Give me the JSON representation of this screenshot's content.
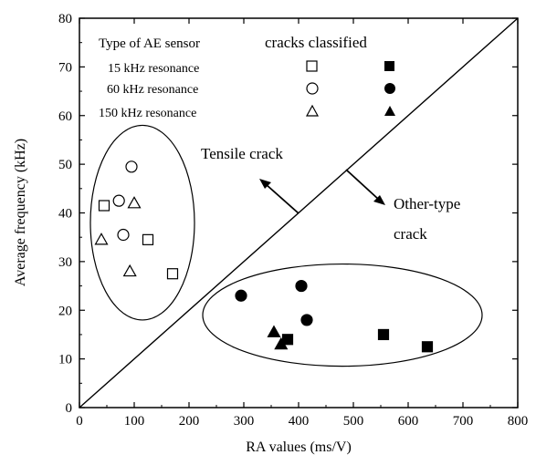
{
  "chart_data": {
    "type": "scatter",
    "xlabel": "RA values (ms/V)",
    "ylabel": "Average frequency (kHz)",
    "xlim": [
      0,
      800
    ],
    "ylim": [
      0,
      80
    ],
    "xticks": [
      0,
      100,
      200,
      300,
      400,
      500,
      600,
      700,
      800
    ],
    "yticks": [
      0,
      10,
      20,
      30,
      40,
      50,
      60,
      70,
      80
    ],
    "grid": false,
    "legend": {
      "placement": "top-left",
      "header_left": "Type of AE sensor",
      "header_right": "cracks classified",
      "rows": [
        {
          "label": "15 kHz resonance",
          "marker": "square"
        },
        {
          "label": "60 kHz resonance",
          "marker": "circle"
        },
        {
          "label": "150 kHz resonance",
          "marker": "triangle"
        }
      ]
    },
    "series": [
      {
        "marker": "square",
        "filled": false,
        "points": [
          [
            45,
            41.5
          ],
          [
            125,
            34.5
          ],
          [
            170,
            27.5
          ]
        ]
      },
      {
        "marker": "circle",
        "filled": false,
        "points": [
          [
            95,
            49.5
          ],
          [
            72,
            42.5
          ],
          [
            80,
            35.5
          ]
        ]
      },
      {
        "marker": "triangle",
        "filled": false,
        "points": [
          [
            100,
            42
          ],
          [
            40,
            34.5
          ],
          [
            92,
            28
          ]
        ]
      },
      {
        "marker": "square",
        "filled": true,
        "points": [
          [
            380,
            14
          ],
          [
            555,
            15
          ],
          [
            635,
            12.5
          ]
        ]
      },
      {
        "marker": "circle",
        "filled": true,
        "points": [
          [
            295,
            23
          ],
          [
            405,
            25
          ],
          [
            415,
            18
          ]
        ]
      },
      {
        "marker": "triangle",
        "filled": true,
        "points": [
          [
            355,
            15.5
          ],
          [
            368,
            13
          ]
        ]
      }
    ],
    "diagonal": [
      [
        0,
        0
      ],
      [
        800,
        80
      ]
    ],
    "annotations": {
      "tensile": "Tensile crack",
      "other_line1": "Other-type",
      "other_line2": "crack"
    },
    "groupings": [
      {
        "shape": "ellipse",
        "center": [
          115,
          38
        ],
        "radius": [
          95,
          20
        ]
      },
      {
        "shape": "ellipse",
        "center": [
          480,
          19
        ],
        "radius": [
          255,
          10.5
        ]
      }
    ]
  }
}
